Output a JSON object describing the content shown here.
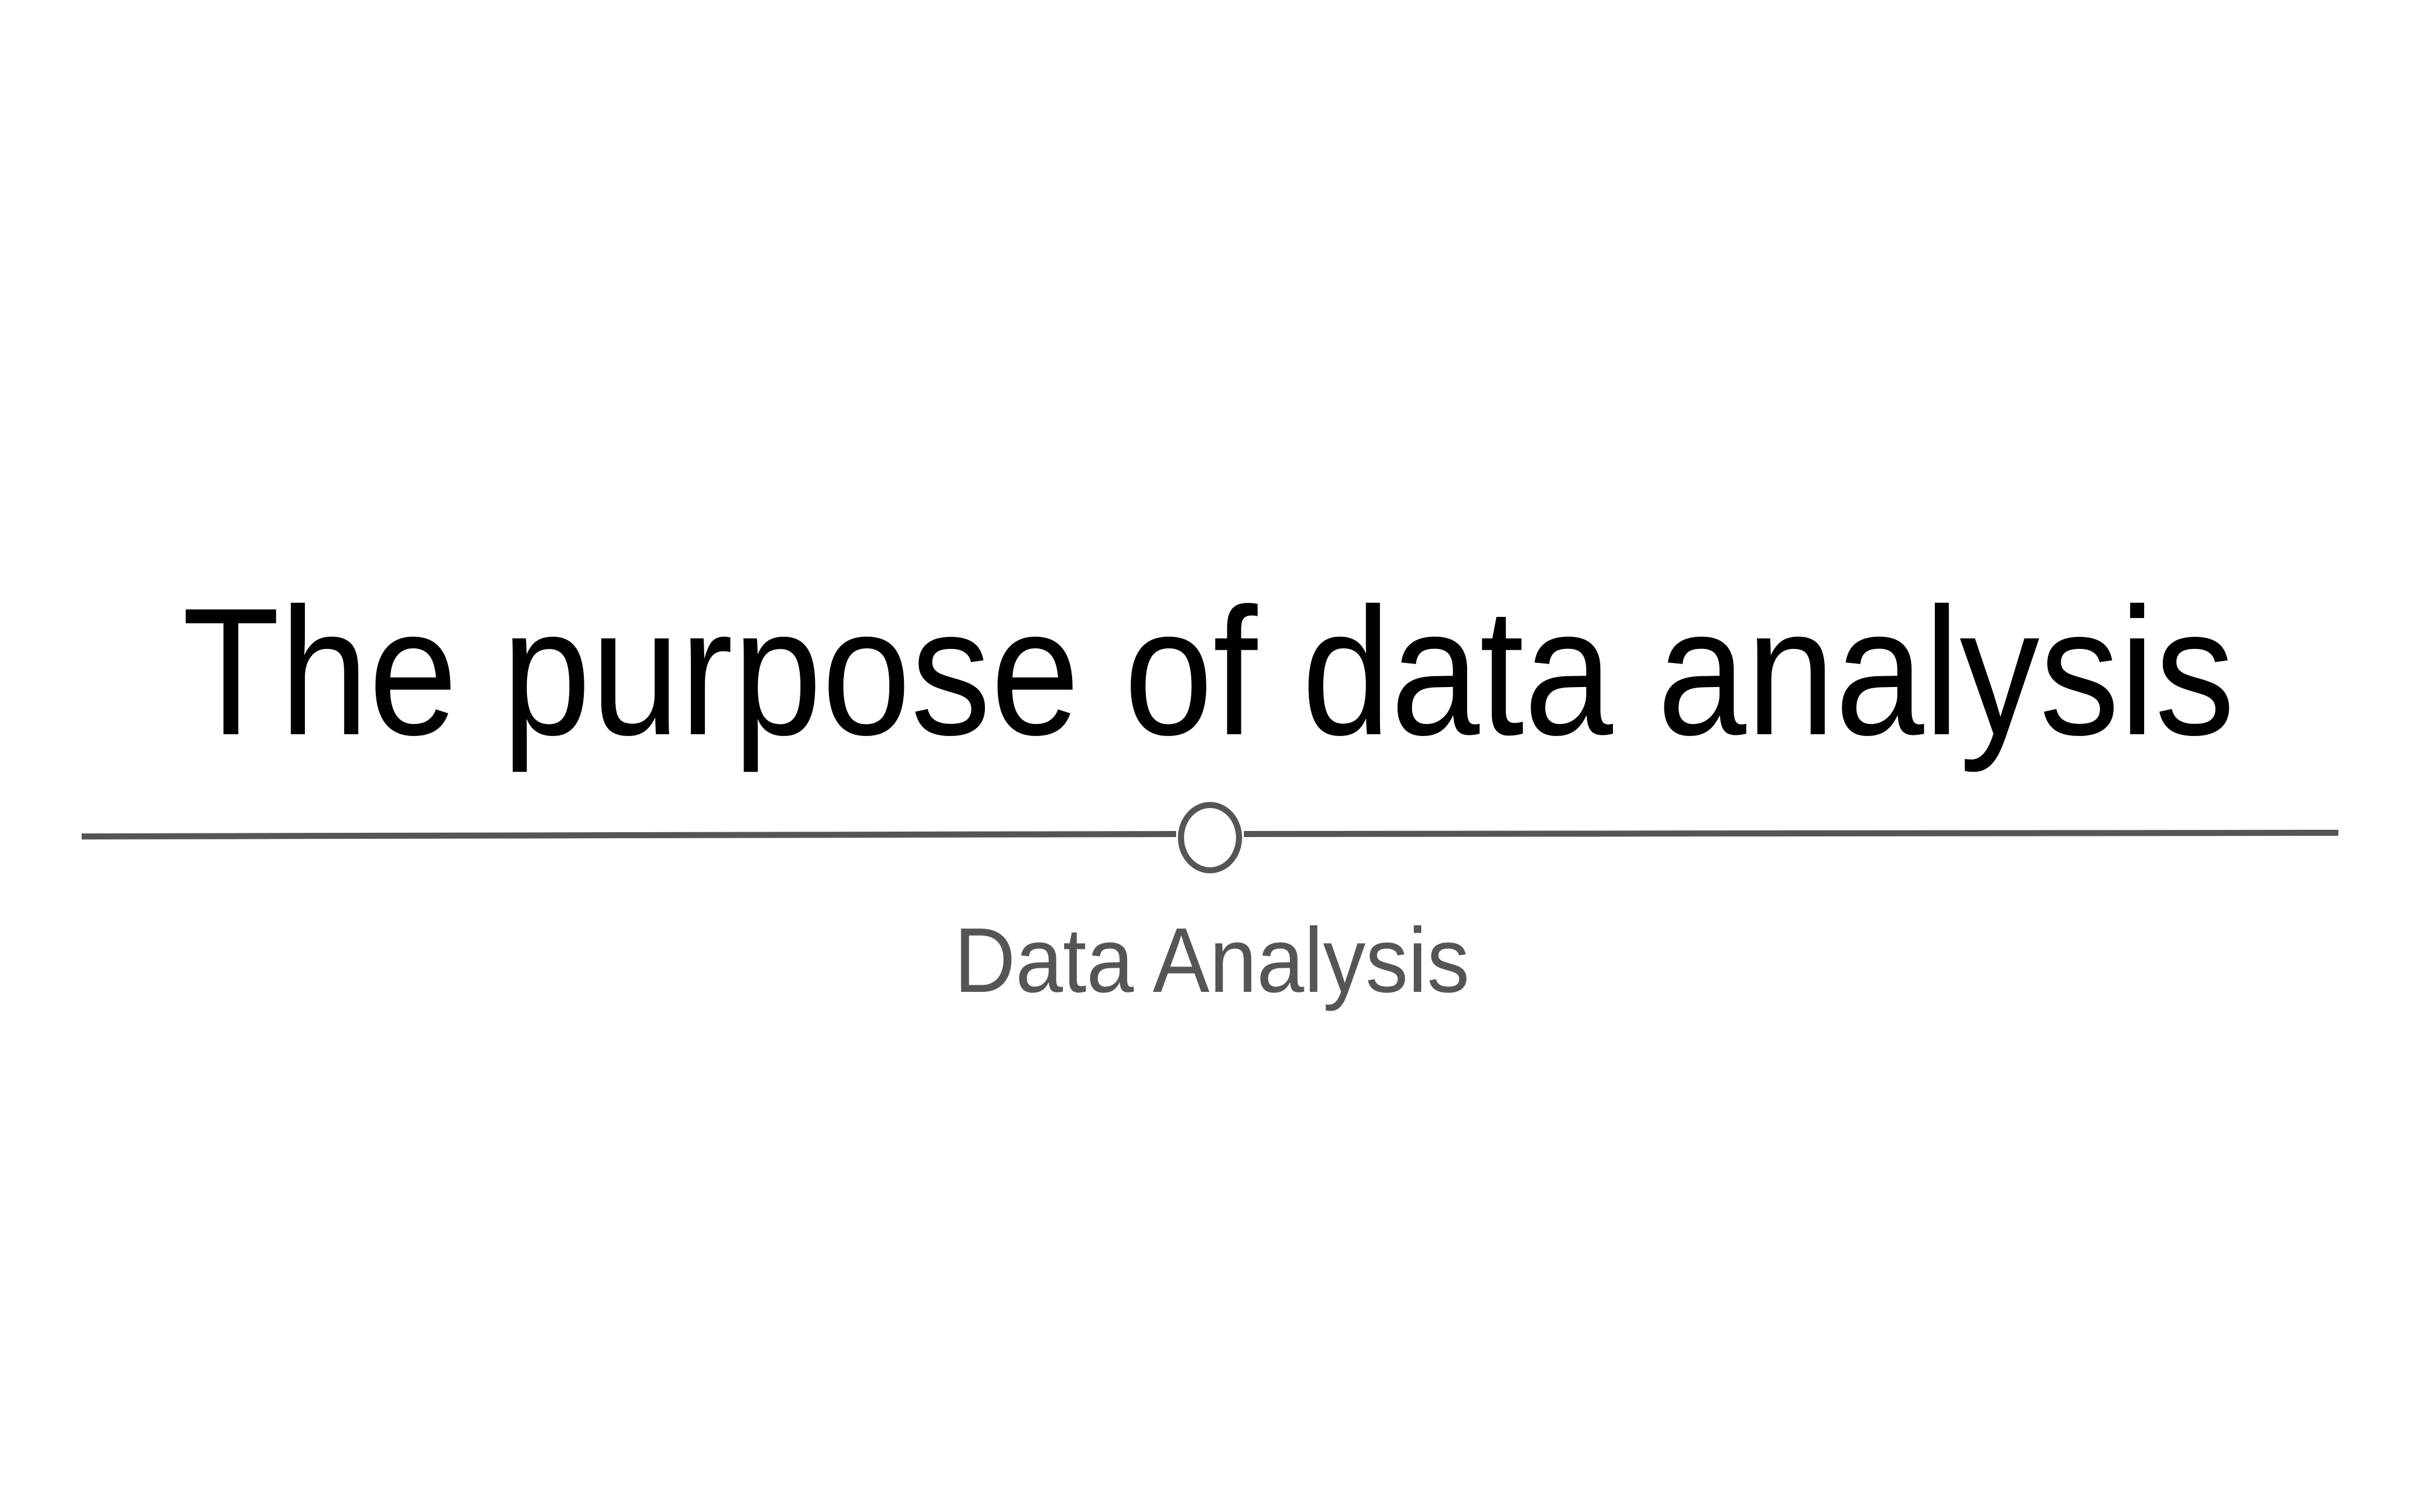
{
  "title": "The purpose of data analysis",
  "subtitle": "Data Analysis"
}
